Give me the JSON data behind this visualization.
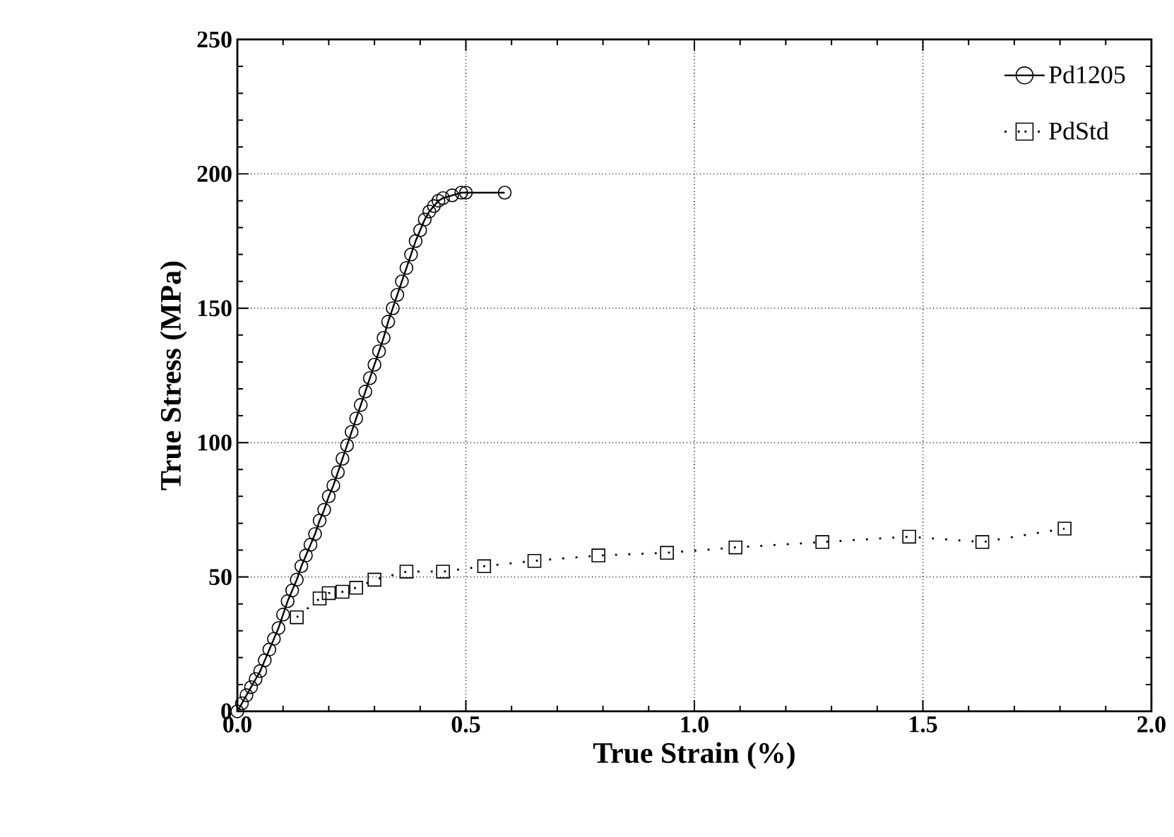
{
  "chart_data": {
    "type": "line",
    "xlabel": "True Strain (%)",
    "ylabel": "True Stress (MPa)",
    "xlim": [
      0,
      2
    ],
    "ylim": [
      0,
      250
    ],
    "xticks": [
      {
        "value": 0,
        "label": "0.0"
      },
      {
        "value": 0.5,
        "label": "0.5"
      },
      {
        "value": 1,
        "label": "1.0"
      },
      {
        "value": 1.5,
        "label": "1.5"
      },
      {
        "value": 2,
        "label": "2.0"
      }
    ],
    "yticks": [
      0,
      50,
      100,
      150,
      200,
      250
    ],
    "grid": true,
    "legend": "top right",
    "series": [
      {
        "name": "Pd1205",
        "color": "#000000",
        "marker": "circle",
        "line_style": "solid",
        "x": [
          0.0,
          0.01,
          0.02,
          0.03,
          0.04,
          0.05,
          0.06,
          0.07,
          0.08,
          0.09,
          0.1,
          0.11,
          0.12,
          0.13,
          0.14,
          0.15,
          0.16,
          0.17,
          0.18,
          0.19,
          0.2,
          0.21,
          0.22,
          0.23,
          0.24,
          0.25,
          0.26,
          0.27,
          0.28,
          0.29,
          0.3,
          0.31,
          0.32,
          0.33,
          0.34,
          0.35,
          0.36,
          0.37,
          0.38,
          0.39,
          0.4,
          0.41,
          0.42,
          0.43,
          0.44,
          0.45,
          0.47,
          0.49,
          0.5,
          0.585
        ],
        "values": [
          0,
          3,
          6,
          9,
          12,
          15,
          19,
          23,
          27,
          31,
          36,
          41,
          45,
          49,
          54,
          58,
          62,
          66,
          71,
          75,
          80,
          84,
          89,
          94,
          99,
          104,
          109,
          114,
          119,
          124,
          129,
          134,
          139,
          145,
          150,
          155,
          160,
          165,
          170,
          175,
          179,
          183,
          186,
          188,
          190,
          191,
          192,
          193,
          193,
          193
        ]
      },
      {
        "name": "PdStd",
        "color": "#000000",
        "marker": "square",
        "line_style": "dotted",
        "x": [
          0.13,
          0.18,
          0.2,
          0.23,
          0.26,
          0.3,
          0.37,
          0.45,
          0.54,
          0.65,
          0.79,
          0.94,
          1.09,
          1.28,
          1.47,
          1.63,
          1.81
        ],
        "values": [
          35,
          42,
          44,
          44.5,
          46,
          49,
          52,
          52,
          54,
          56,
          58,
          59,
          61,
          63,
          65,
          63,
          68
        ]
      }
    ]
  }
}
